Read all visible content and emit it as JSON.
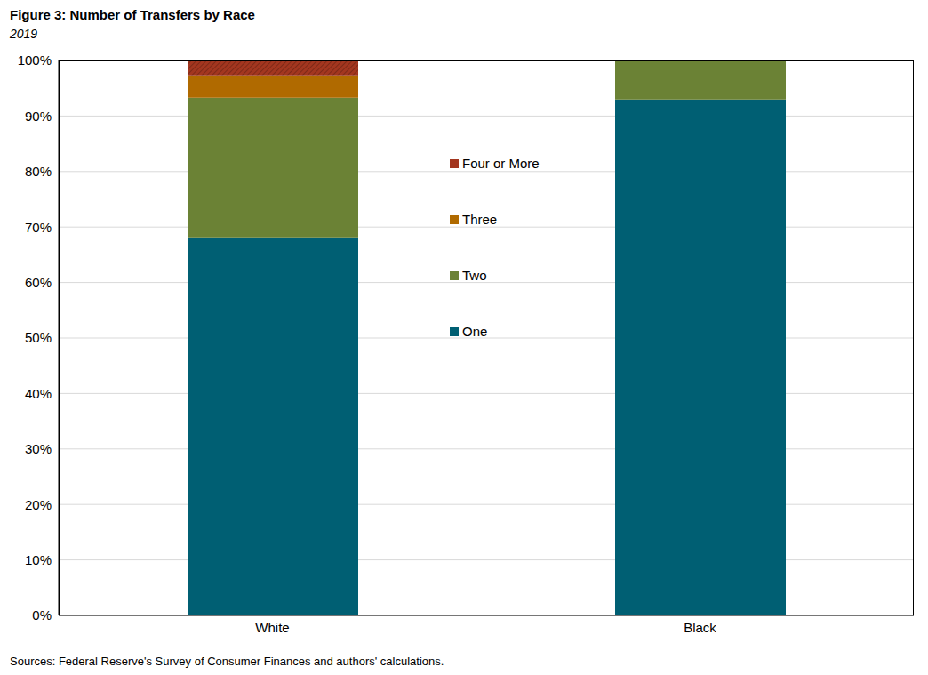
{
  "chart_data": {
    "type": "bar",
    "title": "Figure 3: Number of Transfers by Race",
    "subtitle": "2019",
    "source": "Sources: Federal Reserve's Survey of Consumer Finances and authors' calculations.",
    "categories": [
      "White",
      "Black"
    ],
    "series": [
      {
        "name": "One",
        "color": "#005f73",
        "values": [
          68,
          93
        ]
      },
      {
        "name": "Two",
        "color": "#6b8235",
        "values": [
          25.3,
          7
        ]
      },
      {
        "name": "Three",
        "color": "#b06a00",
        "values": [
          4,
          0
        ]
      },
      {
        "name": "Four or More",
        "color": "#a3361f",
        "values": [
          2.7,
          0
        ]
      }
    ],
    "stacked": true,
    "legend": "center",
    "grid": true,
    "ylim": [
      0,
      100
    ],
    "yticks": [
      {
        "value": 0,
        "label": "0%"
      },
      {
        "value": 10,
        "label": "10%"
      },
      {
        "value": 20,
        "label": "20%"
      },
      {
        "value": 30,
        "label": "30%"
      },
      {
        "value": 40,
        "label": "40%"
      },
      {
        "value": 50,
        "label": "50%"
      },
      {
        "value": 60,
        "label": "60%"
      },
      {
        "value": 70,
        "label": "70%"
      },
      {
        "value": 80,
        "label": "80%"
      },
      {
        "value": 90,
        "label": "90%"
      },
      {
        "value": 100,
        "label": "100%"
      }
    ]
  }
}
